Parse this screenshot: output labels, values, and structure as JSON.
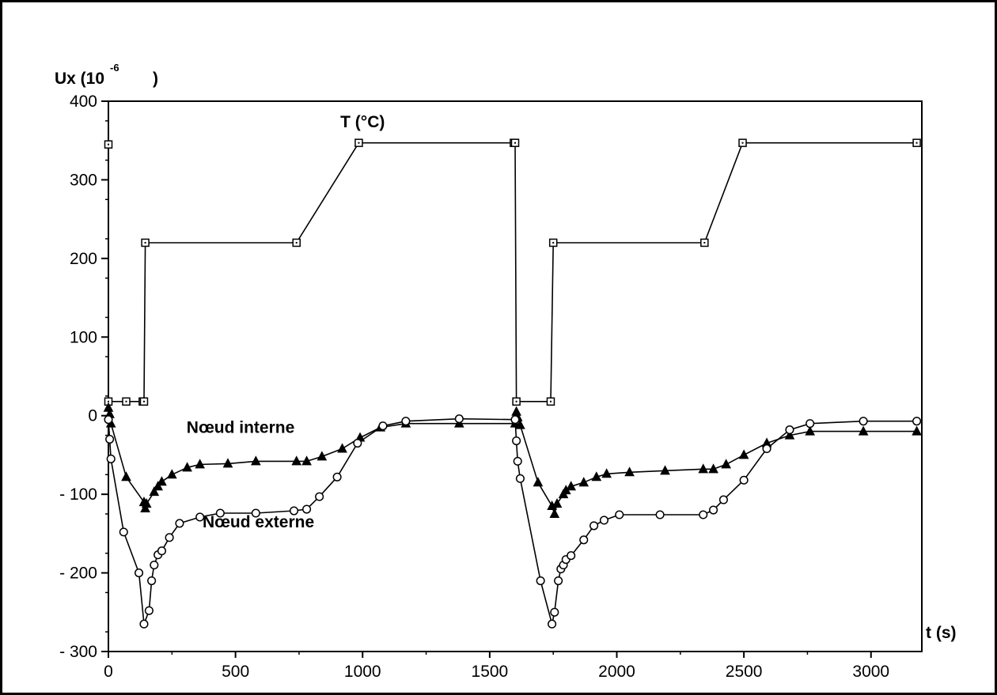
{
  "chart_data": {
    "type": "line",
    "ylabel": "Ux (10",
    "ylabel_exp": "-6",
    "ylabel_close": ")",
    "xlabel": "t (s)",
    "xlim": [
      0,
      3200
    ],
    "ylim": [
      -300,
      400
    ],
    "x_ticks": [
      0,
      500,
      1000,
      1500,
      2000,
      2500,
      3000
    ],
    "x_tick_labels": [
      "0",
      "500",
      "1000",
      "1500",
      "2000",
      "2500",
      "3000"
    ],
    "y_ticks": [
      400,
      300,
      200,
      100,
      0,
      -100,
      -200,
      -300
    ],
    "y_tick_labels": [
      "400",
      "300",
      "200",
      "100",
      "0",
      "- 100",
      "- 200",
      "- 300"
    ],
    "grid": false,
    "annotations": [
      {
        "text": "T (°C)",
        "x": 1000,
        "y": 367
      },
      {
        "text": "Nœud interne",
        "x": 520,
        "y": -22
      },
      {
        "text": "Nœud externe",
        "x": 590,
        "y": -142
      }
    ],
    "series": [
      {
        "marker": "square",
        "x": [
          0,
          0,
          70,
          135,
          140,
          145,
          740,
          985,
          1595,
          1600,
          1605,
          1740,
          1750,
          2345,
          2495,
          3180
        ],
        "y": [
          345,
          18,
          18,
          18,
          18,
          220,
          220,
          347,
          347,
          347,
          18,
          18,
          220,
          220,
          347,
          347
        ]
      },
      {
        "marker": "triangle",
        "x": [
          0,
          5,
          10,
          70,
          140,
          145,
          150,
          180,
          195,
          210,
          250,
          310,
          360,
          470,
          580,
          740,
          780,
          840,
          920,
          990,
          1070,
          1170,
          1380,
          1600,
          1605,
          1610,
          1620,
          1690,
          1745,
          1755,
          1765,
          1790,
          1800,
          1820,
          1870,
          1920,
          1960,
          2050,
          2190,
          2340,
          2380,
          2430,
          2500,
          2590,
          2680,
          2760,
          2970,
          3180
        ],
        "y": [
          10,
          2,
          -10,
          -78,
          -110,
          -118,
          -112,
          -97,
          -90,
          -84,
          -75,
          -66,
          -62,
          -61,
          -58,
          -58,
          -58,
          -52,
          -42,
          -28,
          -15,
          -10,
          -10,
          -10,
          5,
          -2,
          -12,
          -85,
          -115,
          -125,
          -112,
          -100,
          -95,
          -90,
          -85,
          -78,
          -74,
          -72,
          -70,
          -68,
          -68,
          -62,
          -50,
          -35,
          -25,
          -20,
          -20,
          -20
        ]
      },
      {
        "marker": "circle",
        "x": [
          0,
          5,
          10,
          60,
          120,
          140,
          160,
          170,
          180,
          195,
          210,
          240,
          280,
          360,
          440,
          580,
          730,
          780,
          830,
          900,
          980,
          1080,
          1170,
          1380,
          1600,
          1605,
          1610,
          1620,
          1700,
          1745,
          1755,
          1770,
          1780,
          1790,
          1800,
          1820,
          1870,
          1910,
          1950,
          2010,
          2170,
          2340,
          2380,
          2420,
          2500,
          2590,
          2680,
          2760,
          2970,
          3180
        ],
        "y": [
          -5,
          -30,
          -55,
          -148,
          -200,
          -265,
          -248,
          -210,
          -190,
          -177,
          -172,
          -155,
          -137,
          -129,
          -124,
          -124,
          -121,
          -119,
          -103,
          -78,
          -35,
          -13,
          -7,
          -4,
          -5,
          -32,
          -58,
          -80,
          -210,
          -265,
          -250,
          -210,
          -195,
          -190,
          -183,
          -178,
          -158,
          -140,
          -133,
          -126,
          -126,
          -126,
          -120,
          -107,
          -82,
          -42,
          -18,
          -10,
          -7,
          -7
        ]
      }
    ]
  }
}
